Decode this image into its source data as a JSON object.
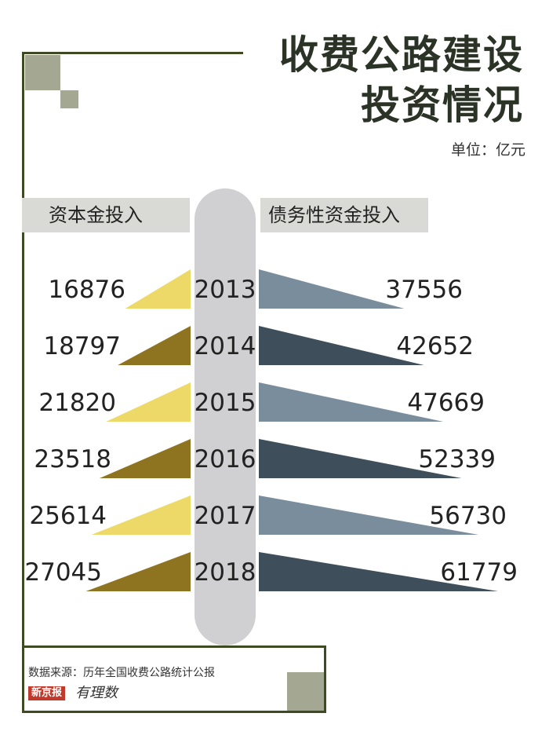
{
  "title_line1": "收费公路建设",
  "title_line2": "投资情况",
  "unit_label": "单位：亿元",
  "left_header": "资本金投入",
  "right_header": "债务性资金投入",
  "source": "数据来源：历年全国收费公路统计公报",
  "logo_text": "新京报",
  "logo_script": "有理数",
  "colors": {
    "left_light": "#ecd968",
    "left_dark": "#8e7320",
    "right_light": "#7a8d9d",
    "right_dark": "#3e4f5b",
    "frame": "#3e4a22",
    "square": "#a4a792",
    "pill": "#d0d0d2"
  },
  "chart_data": {
    "type": "bar",
    "categories": [
      "2013",
      "2014",
      "2015",
      "2016",
      "2017",
      "2018"
    ],
    "series": [
      {
        "name": "资本金投入",
        "values": [
          16876,
          18797,
          21820,
          23518,
          25614,
          27045
        ]
      },
      {
        "name": "债务性资金投入",
        "values": [
          37556,
          42652,
          47669,
          52339,
          56730,
          61779
        ]
      }
    ]
  }
}
